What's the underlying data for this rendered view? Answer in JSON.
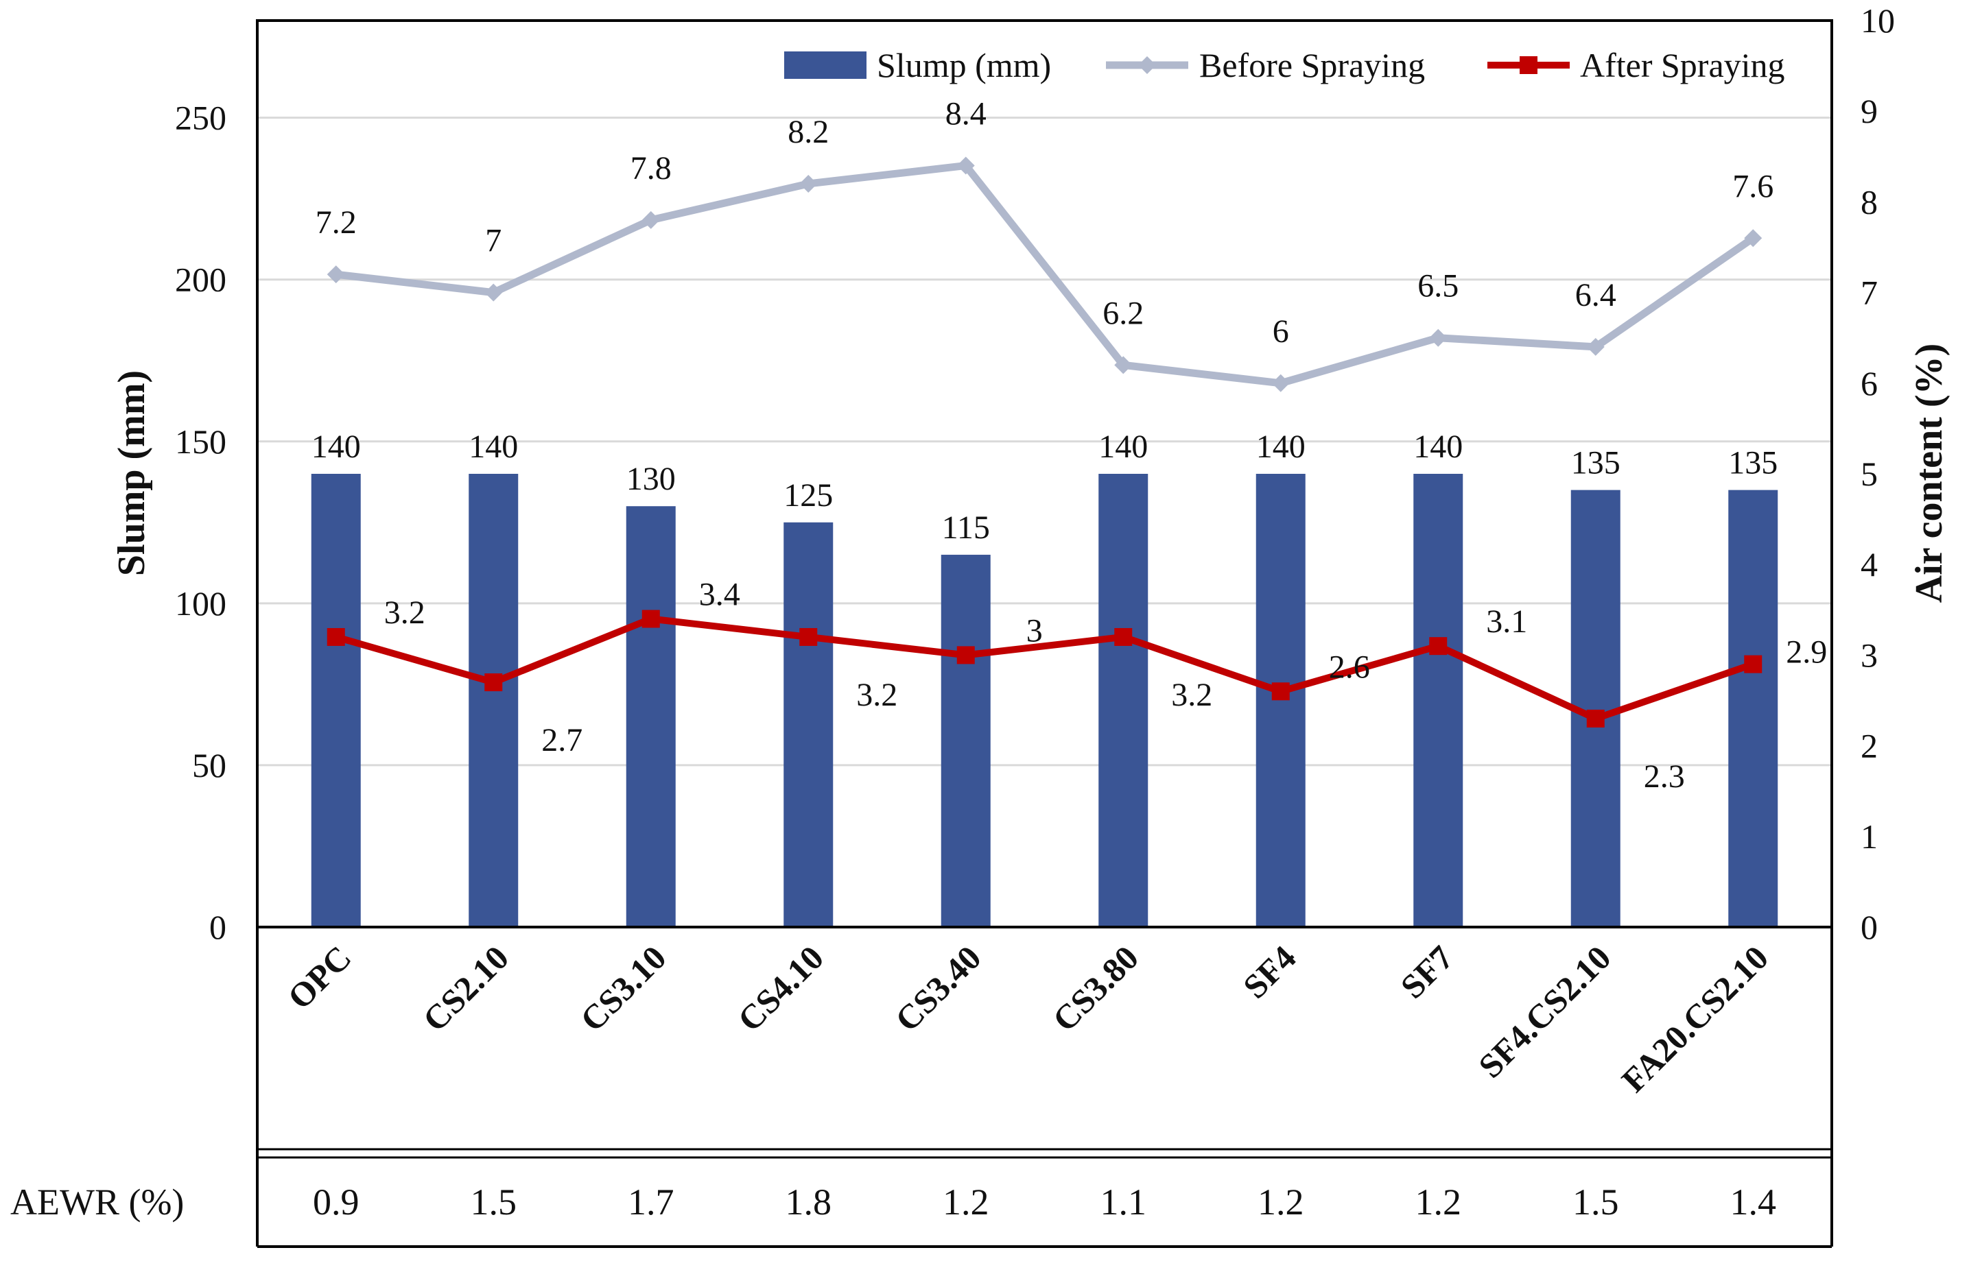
{
  "chart_data": {
    "type": "bar-line-combo",
    "categories": [
      "OPC",
      "CS2.10",
      "CS3.10",
      "CS4.10",
      "CS3.40",
      "CS3.80",
      "SF4",
      "SF7",
      "SF4.CS2.10",
      "FA20.CS2.10"
    ],
    "series": [
      {
        "name": "Slump (mm)",
        "kind": "bar",
        "axis": "left",
        "color": "#3a5595",
        "values": [
          140,
          140,
          130,
          125,
          115,
          140,
          140,
          140,
          135,
          135
        ]
      },
      {
        "name": "Before Spraying",
        "kind": "line",
        "axis": "right",
        "color": "#b0b8cc",
        "marker": "diamond",
        "values": [
          7.2,
          7,
          7.8,
          8.2,
          8.4,
          6.2,
          6,
          6.5,
          6.4,
          7.6
        ],
        "labels": [
          "7.2",
          "7",
          "7.8",
          "8.2",
          "8.4",
          "6.2",
          "6",
          "6.5",
          "6.4",
          "7.6"
        ]
      },
      {
        "name": "After Spraying",
        "kind": "line",
        "axis": "right",
        "color": "#c00000",
        "marker": "square",
        "values": [
          3.2,
          2.7,
          3.4,
          3.2,
          3.0,
          3.2,
          2.6,
          3.1,
          2.3,
          2.9
        ],
        "labels": [
          "3.2",
          "2.7",
          "3.4",
          "3.2",
          "3",
          "3.2",
          "2.6",
          "3.1",
          "2.3",
          "2.9"
        ]
      }
    ],
    "ylabel": "Slump (mm)",
    "y2label": "Air content (%)",
    "ylim": [
      0,
      280
    ],
    "y2lim": [
      0,
      10
    ],
    "yticks": [
      0,
      50,
      100,
      150,
      200,
      250
    ],
    "y2ticks": [
      0,
      1,
      2,
      3,
      4,
      5,
      6,
      7,
      8,
      9,
      10
    ],
    "grid": true,
    "legend_position": "top-right",
    "table_row": {
      "label": "AEWR (%)",
      "values": [
        "0.9",
        "1.5",
        "1.7",
        "1.8",
        "1.2",
        "1.1",
        "1.2",
        "1.2",
        "1.5",
        "1.4"
      ]
    }
  }
}
